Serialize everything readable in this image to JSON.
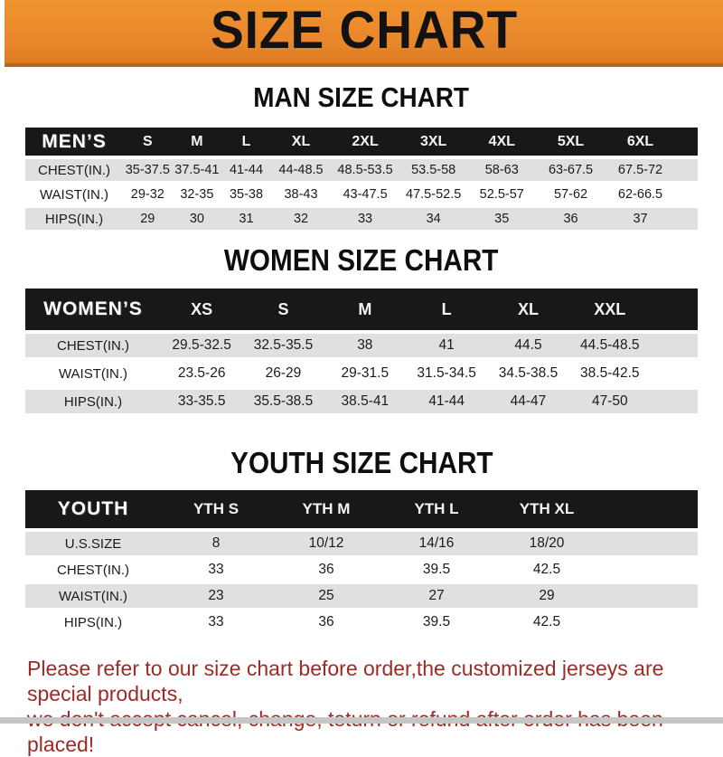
{
  "banner": {
    "title": "SIZE CHART"
  },
  "sections": {
    "men": {
      "heading": "MAN SIZE CHART",
      "table": {
        "label": "MEN’S",
        "columns": [
          "S",
          "M",
          "L",
          "XL",
          "2XL",
          "3XL",
          "4XL",
          "5XL",
          "6XL"
        ],
        "rows": [
          {
            "label": "CHEST(IN.)",
            "values": [
              "35-37.5",
              "37.5-41",
              "41-44",
              "44-48.5",
              "48.5-53.5",
              "53.5-58",
              "58-63",
              "63-67.5",
              "67.5-72"
            ]
          },
          {
            "label": "WAIST(IN.)",
            "values": [
              "29-32",
              "32-35",
              "35-38",
              "38-43",
              "43-47.5",
              "47.5-52.5",
              "52.5-57",
              "57-62",
              "62-66.5"
            ]
          },
          {
            "label": "HIPS(IN.)",
            "values": [
              "29",
              "30",
              "31",
              "32",
              "33",
              "34",
              "35",
              "36",
              "37"
            ]
          }
        ]
      }
    },
    "women": {
      "heading": "WOMEN SIZE CHART",
      "table": {
        "label": "WOMEN’S",
        "columns": [
          "XS",
          "S",
          "M",
          "L",
          "XL",
          "XXL"
        ],
        "rows": [
          {
            "label": "CHEST(IN.)",
            "values": [
              "29.5-32.5",
              "32.5-35.5",
              "38",
              "41",
              "44.5",
              "44.5-48.5"
            ]
          },
          {
            "label": "WAIST(IN.)",
            "values": [
              "23.5-26",
              "26-29",
              "29-31.5",
              "31.5-34.5",
              "34.5-38.5",
              "38.5-42.5"
            ]
          },
          {
            "label": "HIPS(IN.)",
            "values": [
              "33-35.5",
              "35.5-38.5",
              "38.5-41",
              "41-44",
              "44-47",
              "47-50"
            ]
          }
        ]
      }
    },
    "youth": {
      "heading": "YOUTH SIZE CHART",
      "table": {
        "label": "YOUTH",
        "columns": [
          "YTH S",
          "YTH M",
          "YTH L",
          "YTH XL"
        ],
        "rows": [
          {
            "label": "U.S.SIZE",
            "values": [
              "8",
              "10/12",
              "14/16",
              "18/20"
            ]
          },
          {
            "label": "CHEST(IN.)",
            "values": [
              "33",
              "36",
              "39.5",
              "42.5"
            ]
          },
          {
            "label": "WAIST(IN.)",
            "values": [
              "23",
              "25",
              "27",
              "29"
            ]
          },
          {
            "label": "HIPS(IN.)",
            "values": [
              "33",
              "36",
              "39.5",
              "42.5"
            ]
          }
        ]
      }
    }
  },
  "note": {
    "line1": "Please refer to our size chart before order,the customized jerseys are special products,",
    "line2": "we don't accept cancel, change, teturn or refund after order has been placed!"
  },
  "colors": {
    "accent_orange": "#E8862B",
    "header_black": "#181818",
    "row_gray": "#E0E0E0",
    "note_red": "#9C2B26"
  }
}
